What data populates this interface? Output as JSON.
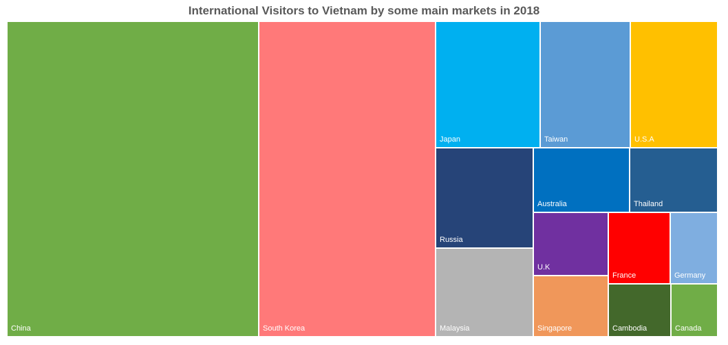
{
  "chart_data": {
    "type": "treemap",
    "title": "International Visitors to Vietnam by some main markets in 2018",
    "items": [
      {
        "name": "China",
        "value": 4966,
        "color": "#70AD47"
      },
      {
        "name": "South Korea",
        "value": 3486,
        "color": "#FF7979"
      },
      {
        "name": "Japan",
        "value": 827,
        "color": "#00B0F0"
      },
      {
        "name": "Taiwan",
        "value": 714,
        "color": "#5B9BD5"
      },
      {
        "name": "U.S.A",
        "value": 688,
        "color": "#FFC000"
      },
      {
        "name": "Russia",
        "value": 606,
        "color": "#264478"
      },
      {
        "name": "Malaysia",
        "value": 540,
        "color": "#B4B4B4"
      },
      {
        "name": "Australia",
        "value": 387,
        "color": "#0070C0"
      },
      {
        "name": "Thailand",
        "value": 350,
        "color": "#255E91"
      },
      {
        "name": "U.K",
        "value": 298,
        "color": "#7030A0"
      },
      {
        "name": "Singapore",
        "value": 286,
        "color": "#F0975A"
      },
      {
        "name": "France",
        "value": 279,
        "color": "#FF0000"
      },
      {
        "name": "Germany",
        "value": 214,
        "color": "#7FAEE0"
      },
      {
        "name": "Cambodia",
        "value": 203,
        "color": "#43682B"
      },
      {
        "name": "Canada",
        "value": 168,
        "color": "#70AD47"
      }
    ]
  }
}
